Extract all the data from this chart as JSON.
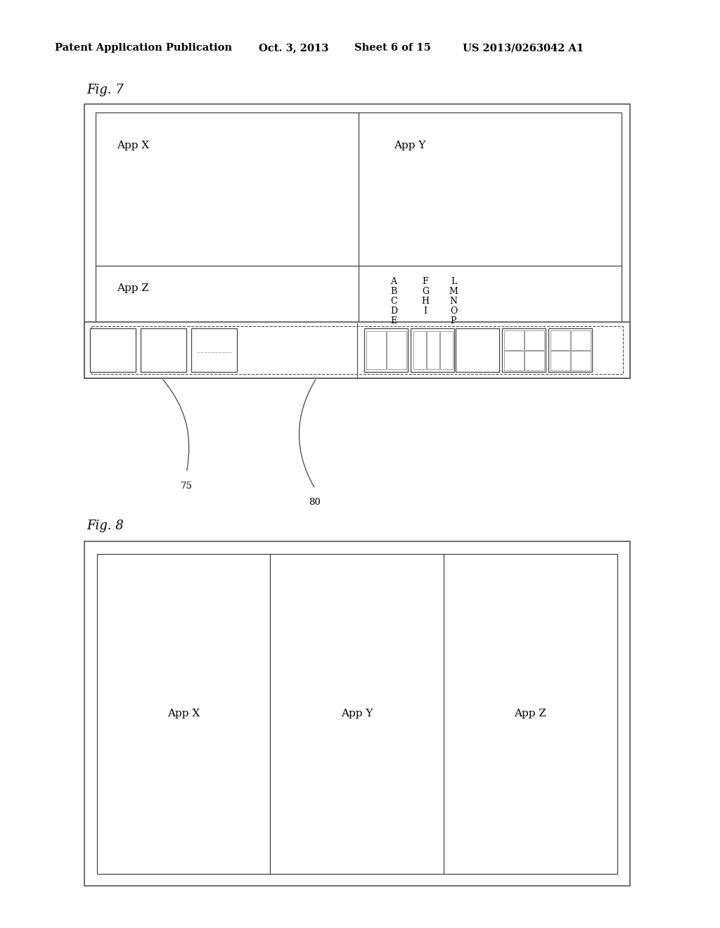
{
  "bg_color": "#ffffff",
  "header_text": "Patent Application Publication",
  "header_date": "Oct. 3, 2013",
  "header_sheet": "Sheet 6 of 15",
  "header_patent": "US 2013/0263042 A1",
  "fig7_label": "Fig. 7",
  "fig8_label": "Fig. 8",
  "label_75": "75",
  "label_80": "80",
  "line_color": "#444444",
  "text_color": "#000000"
}
